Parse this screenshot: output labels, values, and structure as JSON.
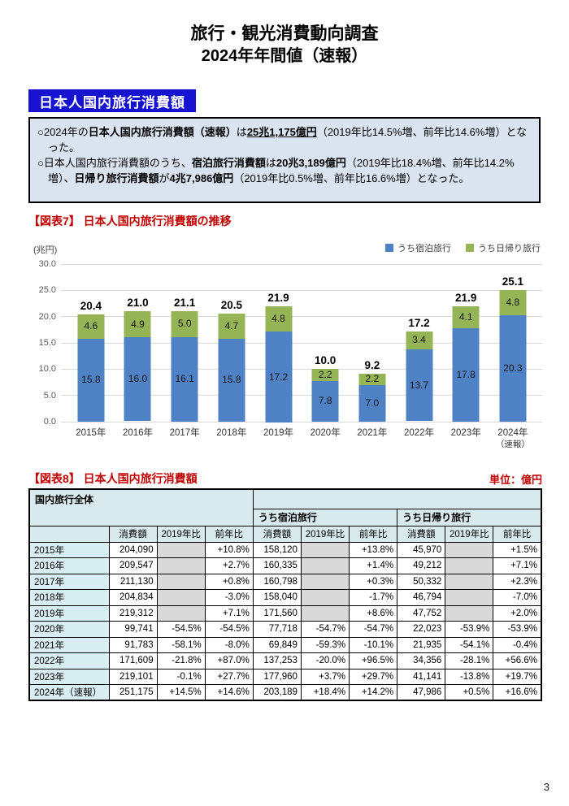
{
  "page": {
    "page_number": "3"
  },
  "header": {
    "title_line1": "旅行・観光消費動向調査",
    "title_line2": "2024年年間値（速報）"
  },
  "section": {
    "label": "日本人国内旅行消費額"
  },
  "summary": {
    "para1": [
      {
        "t": "○2024年の"
      },
      {
        "t": "日本人国内旅行消費額（速報）",
        "b": true
      },
      {
        "t": "は"
      },
      {
        "t": "25兆1,175億円",
        "b": true,
        "u": true
      },
      {
        "t": "（2019年比14.5%増、前年比14.6%増）となった。"
      }
    ],
    "para2": [
      {
        "t": "○日本人国内旅行消費額のうち、"
      },
      {
        "t": "宿泊旅行消費額",
        "b": true
      },
      {
        "t": "は"
      },
      {
        "t": "20兆3,189億円",
        "b": true
      },
      {
        "t": "（2019年比18.4%増、前年比14.2%増）、"
      },
      {
        "t": "日帰り旅行消費額",
        "b": true
      },
      {
        "t": "が"
      },
      {
        "t": "4兆7,986億円",
        "b": true
      },
      {
        "t": "（2019年比0.5%増、前年比16.6%増）となった。"
      }
    ]
  },
  "chart_data": {
    "type": "bar",
    "stacked": true,
    "title": "【図表7】 日本人国内旅行消費額の推移",
    "unit_label": "(兆円)",
    "categories": [
      [
        "2015年"
      ],
      [
        "2016年"
      ],
      [
        "2017年"
      ],
      [
        "2018年"
      ],
      [
        "2019年"
      ],
      [
        "2020年"
      ],
      [
        "2021年"
      ],
      [
        "2022年"
      ],
      [
        "2023年"
      ],
      [
        "2024年",
        "（速報）"
      ]
    ],
    "series": [
      {
        "name": "うち宿泊旅行",
        "color": "#4E82C4",
        "values": [
          15.8,
          16.0,
          16.1,
          15.8,
          17.2,
          7.8,
          7.0,
          13.7,
          17.8,
          20.3
        ]
      },
      {
        "name": "うち日帰り旅行",
        "color": "#94B455",
        "values": [
          4.6,
          4.9,
          5.0,
          4.7,
          4.8,
          2.2,
          2.2,
          3.4,
          4.1,
          4.8
        ]
      }
    ],
    "totals": [
      20.4,
      21.0,
      21.1,
      20.5,
      21.9,
      10.0,
      9.2,
      17.2,
      21.9,
      25.1
    ],
    "ylim": [
      0,
      30
    ],
    "ytick_step": 5,
    "grid": true,
    "legend_position": "top-right"
  },
  "table": {
    "title": "【図表8】 日本人国内旅行消費額",
    "unit_label": "単位：億円",
    "group_header": "国内旅行全体",
    "subgroups": [
      "うち宿泊旅行",
      "うち日帰り旅行"
    ],
    "col_headers": [
      "消費額",
      "2019年比",
      "前年比",
      "消費額",
      "2019年比",
      "前年比",
      "消費額",
      "2019年比",
      "前年比"
    ],
    "rows": [
      {
        "year": "2015年",
        "cells": [
          "204,090",
          "",
          "+10.8%",
          "158,120",
          "",
          "+13.8%",
          "45,970",
          "",
          "+1.5%"
        ]
      },
      {
        "year": "2016年",
        "cells": [
          "209,547",
          "",
          "+2.7%",
          "160,335",
          "",
          "+1.4%",
          "49,212",
          "",
          "+7.1%"
        ]
      },
      {
        "year": "2017年",
        "cells": [
          "211,130",
          "",
          "+0.8%",
          "160,798",
          "",
          "+0.3%",
          "50,332",
          "",
          "+2.3%"
        ]
      },
      {
        "year": "2018年",
        "cells": [
          "204,834",
          "",
          "-3.0%",
          "158,040",
          "",
          "-1.7%",
          "46,794",
          "",
          "-7.0%"
        ]
      },
      {
        "year": "2019年",
        "cells": [
          "219,312",
          "",
          "+7.1%",
          "171,560",
          "",
          "+8.6%",
          "47,752",
          "",
          "+2.0%"
        ]
      },
      {
        "year": "2020年",
        "cells": [
          "99,741",
          "-54.5%",
          "-54.5%",
          "77,718",
          "-54.7%",
          "-54.7%",
          "22,023",
          "-53.9%",
          "-53.9%"
        ]
      },
      {
        "year": "2021年",
        "cells": [
          "91,783",
          "-58.1%",
          "-8.0%",
          "69,849",
          "-59.3%",
          "-10.1%",
          "21,935",
          "-54.1%",
          "-0.4%"
        ]
      },
      {
        "year": "2022年",
        "cells": [
          "171,609",
          "-21.8%",
          "+87.0%",
          "137,253",
          "-20.0%",
          "+96.5%",
          "34,356",
          "-28.1%",
          "+56.6%"
        ]
      },
      {
        "year": "2023年",
        "cells": [
          "219,101",
          "-0.1%",
          "+27.7%",
          "177,960",
          "+3.7%",
          "+29.7%",
          "41,141",
          "-13.8%",
          "+19.7%"
        ]
      },
      {
        "year": "2024年（速報）",
        "cells": [
          "251,175",
          "+14.5%",
          "+14.6%",
          "203,189",
          "+18.4%",
          "+14.2%",
          "47,986",
          "+0.5%",
          "+16.6%"
        ]
      }
    ]
  },
  "colors": {
    "section_box": "#1512D0",
    "heading_red": "#C00000",
    "summary_bg": "#DAE3F0",
    "bar_blue": "#4E82C4",
    "bar_green": "#94B455",
    "table_header_bg": "#D8EAEE",
    "year_cell_bg": "#D8EEF3",
    "empty_cell_gray": "#D9D9D9"
  }
}
